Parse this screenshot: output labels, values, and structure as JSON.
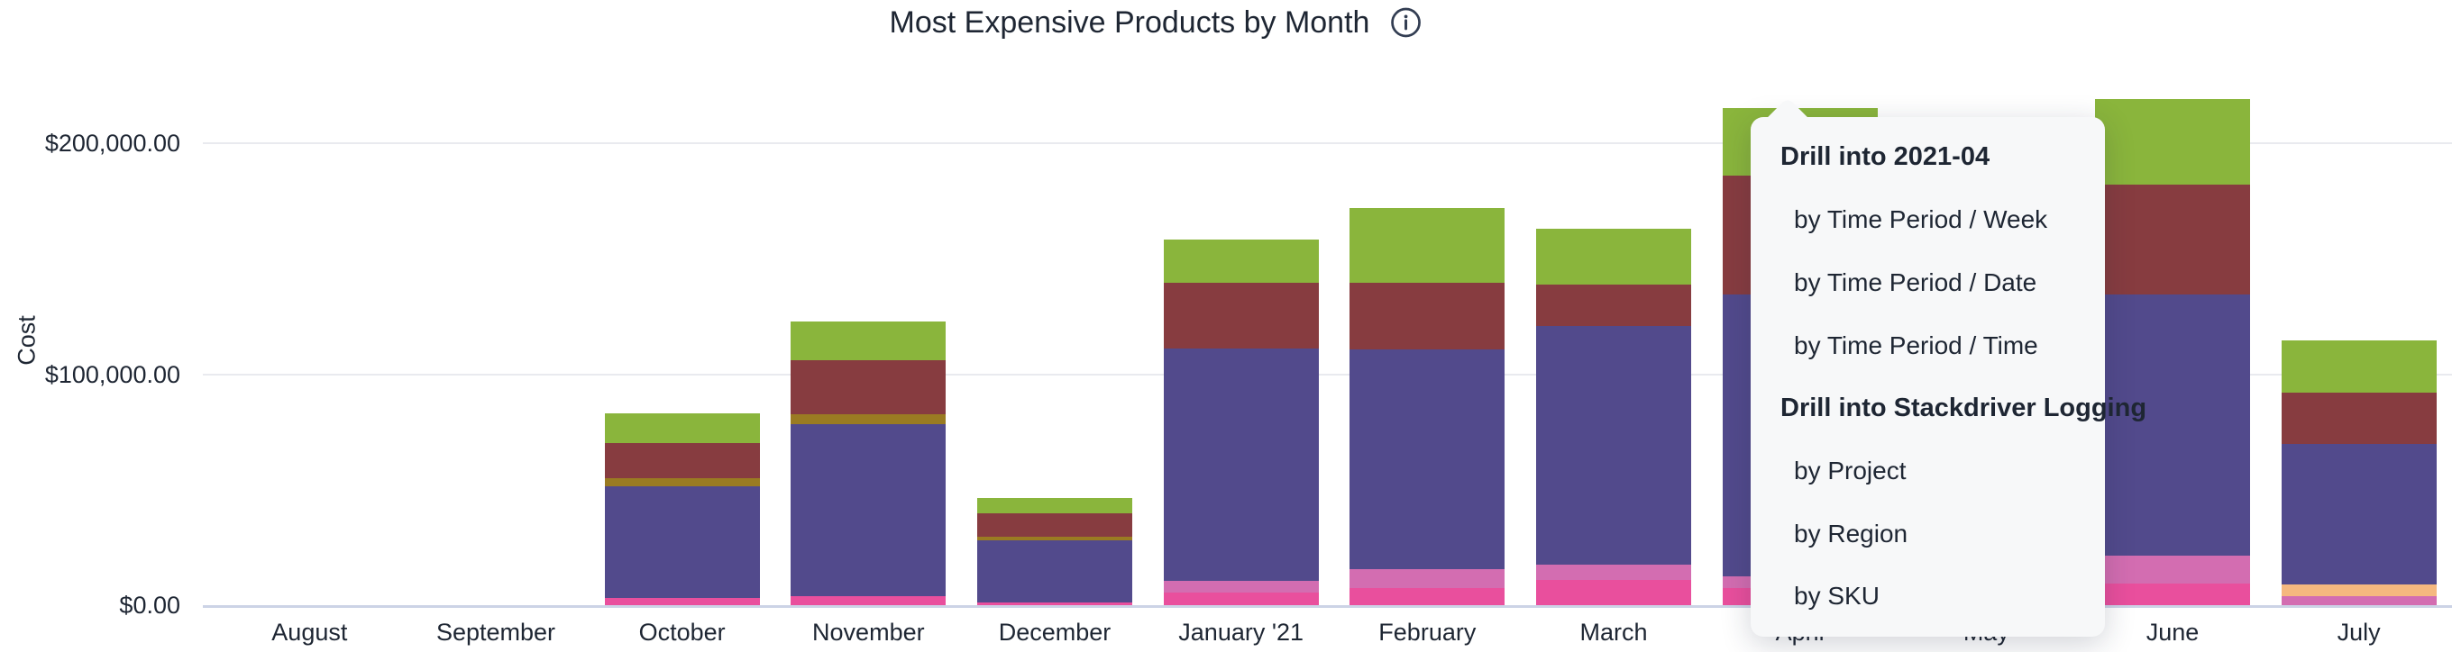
{
  "header": {
    "title": "Most Expensive Products by Month",
    "info_icon": "info"
  },
  "y_axis": {
    "title": "Cost",
    "ticks": [
      {
        "label": "$200,000.00",
        "value": 200000
      },
      {
        "label": "$100,000.00",
        "value": 100000
      },
      {
        "label": "$0.00",
        "value": 0
      }
    ]
  },
  "palette": {
    "green": "#8ab53c",
    "maroon": "#873c40",
    "olive": "#9a7b22",
    "purple": "#524a8c",
    "hot_pink": "#e94f9d",
    "orchid": "#d36db1",
    "orange": "#f5b87f"
  },
  "ui_colors": {
    "text": "#1e2633",
    "menu_background": "#f7f8f9",
    "axis_baseline": "#ccd3e6",
    "gridline": "#e9eaef",
    "background": "#ffffff"
  },
  "menu": {
    "sections": [
      {
        "header": "Drill into 2021-04",
        "items": [
          "by Time Period / Week",
          "by Time Period / Date",
          "by Time Period / Time"
        ]
      },
      {
        "header": "Drill into Stackdriver Logging",
        "items": [
          "by Project",
          "by Region",
          "by SKU"
        ]
      }
    ]
  },
  "months": [
    {
      "label": "August",
      "slug": "august",
      "occluded": false,
      "segments": []
    },
    {
      "label": "September",
      "slug": "september",
      "occluded": false,
      "segments": []
    },
    {
      "label": "October",
      "slug": "october",
      "occluded": false,
      "segments": [
        {
          "c": "hot_pink",
          "v": 3100
        },
        {
          "c": "purple",
          "v": 48400
        },
        {
          "c": "olive",
          "v": 3500
        },
        {
          "c": "maroon",
          "v": 15200
        },
        {
          "c": "green",
          "v": 12900
        }
      ]
    },
    {
      "label": "November",
      "slug": "november",
      "occluded": false,
      "segments": [
        {
          "c": "hot_pink",
          "v": 3900
        },
        {
          "c": "purple",
          "v": 74500
        },
        {
          "c": "olive",
          "v": 4300
        },
        {
          "c": "maroon",
          "v": 23400
        },
        {
          "c": "green",
          "v": 16800
        }
      ]
    },
    {
      "label": "December",
      "slug": "december",
      "occluded": false,
      "segments": [
        {
          "c": "hot_pink",
          "v": 1200
        },
        {
          "c": "purple",
          "v": 26900
        },
        {
          "c": "olive",
          "v": 1600
        },
        {
          "c": "maroon",
          "v": 10100
        },
        {
          "c": "green",
          "v": 6600
        }
      ]
    },
    {
      "label": "January '21",
      "slug": "january-21",
      "occluded": false,
      "segments": [
        {
          "c": "hot_pink",
          "v": 5500
        },
        {
          "c": "orchid",
          "v": 5100
        },
        {
          "c": "purple",
          "v": 100600
        },
        {
          "c": "maroon",
          "v": 28500
        },
        {
          "c": "green",
          "v": 18700
        }
      ]
    },
    {
      "label": "February",
      "slug": "february",
      "occluded": false,
      "segments": [
        {
          "c": "hot_pink",
          "v": 7400
        },
        {
          "c": "orchid",
          "v": 8200
        },
        {
          "c": "purple",
          "v": 95100
        },
        {
          "c": "maroon",
          "v": 28900
        },
        {
          "c": "green",
          "v": 32400
        }
      ]
    },
    {
      "label": "March",
      "slug": "march",
      "occluded": false,
      "segments": [
        {
          "c": "hot_pink",
          "v": 10900
        },
        {
          "c": "orchid",
          "v": 6600
        },
        {
          "c": "purple",
          "v": 103300
        },
        {
          "c": "maroon",
          "v": 17900
        },
        {
          "c": "green",
          "v": 24200
        }
      ]
    },
    {
      "label": "April",
      "slug": "april",
      "occluded": false,
      "segments": [
        {
          "c": "hot_pink",
          "v": 7400
        },
        {
          "c": "orchid",
          "v": 5100
        },
        {
          "c": "purple",
          "v": 122000
        },
        {
          "c": "maroon",
          "v": 51500
        },
        {
          "c": "green",
          "v": 29200
        }
      ]
    },
    {
      "label": "May",
      "slug": "may",
      "occluded": true,
      "segments": []
    },
    {
      "label": "June",
      "slug": "june",
      "occluded": false,
      "segments": [
        {
          "c": "hot_pink",
          "v": 9400
        },
        {
          "c": "orchid",
          "v": 12100
        },
        {
          "c": "purple",
          "v": 113000
        },
        {
          "c": "maroon",
          "v": 47600
        },
        {
          "c": "green",
          "v": 37000
        }
      ]
    },
    {
      "label": "July",
      "slug": "july",
      "occluded": false,
      "segments": [
        {
          "c": "orchid",
          "v": 3900
        },
        {
          "c": "orange",
          "v": 5100
        },
        {
          "c": "purple",
          "v": 60800
        },
        {
          "c": "maroon",
          "v": 22200
        },
        {
          "c": "green",
          "v": 22600
        }
      ]
    }
  ],
  "chart_data": {
    "type": "bar",
    "stacked": true,
    "title": "Most Expensive Products by Month",
    "xlabel": "",
    "ylabel": "Cost",
    "ylim": [
      0,
      260000
    ],
    "grid": "horizontal",
    "legend_position": "none-visible",
    "categories": [
      "August",
      "September",
      "October",
      "November",
      "December",
      "January '21",
      "February",
      "March",
      "April",
      "May",
      "June",
      "July"
    ],
    "series": [
      {
        "name": "hot-pink segment",
        "color": "#e94f9d",
        "values": [
          0,
          0,
          3100,
          3900,
          1200,
          5500,
          7400,
          10900,
          7400,
          null,
          9400,
          0
        ]
      },
      {
        "name": "orchid segment",
        "color": "#d36db1",
        "values": [
          0,
          0,
          0,
          0,
          0,
          5100,
          8200,
          6600,
          5100,
          null,
          12100,
          3900
        ]
      },
      {
        "name": "orange segment",
        "color": "#f5b87f",
        "values": [
          0,
          0,
          0,
          0,
          0,
          0,
          0,
          0,
          0,
          null,
          0,
          5100
        ]
      },
      {
        "name": "purple segment",
        "color": "#524a8c",
        "values": [
          0,
          0,
          48400,
          74500,
          26900,
          100600,
          95100,
          103300,
          122000,
          null,
          113000,
          60800
        ]
      },
      {
        "name": "olive segment",
        "color": "#9a7b22",
        "values": [
          0,
          0,
          3500,
          4300,
          1600,
          0,
          0,
          0,
          0,
          null,
          0,
          0
        ]
      },
      {
        "name": "maroon segment",
        "color": "#873c40",
        "values": [
          0,
          0,
          15200,
          23400,
          10100,
          28500,
          28900,
          17900,
          51500,
          null,
          47600,
          22200
        ]
      },
      {
        "name": "green segment",
        "color": "#8ab53c",
        "values": [
          0,
          0,
          12900,
          16800,
          6600,
          18700,
          32400,
          24200,
          29200,
          null,
          37000,
          22600
        ]
      }
    ],
    "annotations": {
      "may_bar": "fully occluded by open drill-down menu"
    }
  }
}
